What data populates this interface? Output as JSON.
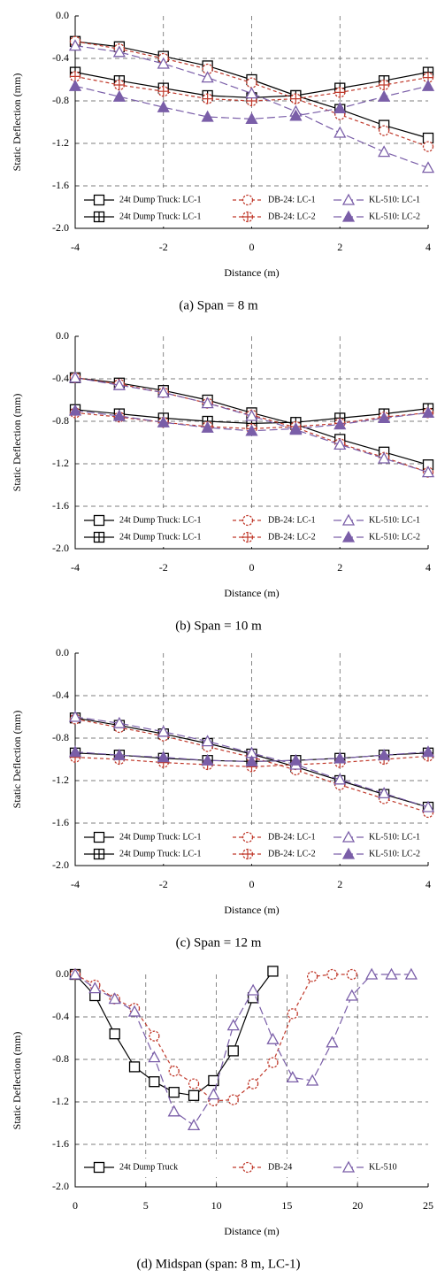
{
  "chart_data": [
    {
      "type": "line",
      "caption": "(a) Span = 8 m",
      "xlabel": "Distance (m)",
      "ylabel": "Static Deflection (mm)",
      "xlim": [
        -4,
        4
      ],
      "xticks": [
        -4,
        -2,
        0,
        2,
        4
      ],
      "ylim": [
        -2,
        0
      ],
      "yticks": [
        {
          "value": 0,
          "label": "0.0"
        },
        -0.4,
        -0.8,
        -1.2,
        -1.6,
        {
          "value": -2,
          "label": "-2.0"
        }
      ],
      "grid": true,
      "x": [
        -4,
        -3,
        -2,
        -1,
        0,
        1,
        2,
        3,
        4
      ],
      "series": [
        {
          "name": "24t Dump Truck: LC-1",
          "color": "#000000",
          "marker": "square",
          "dash": "solid",
          "values": [
            -0.24,
            -0.29,
            -0.38,
            -0.47,
            -0.6,
            -0.75,
            -0.88,
            -1.03,
            -1.15
          ]
        },
        {
          "name": "24t Dump Truck: LC-1",
          "color": "#000000",
          "marker": "square-plus",
          "dash": "solid",
          "values": [
            -0.53,
            -0.61,
            -0.68,
            -0.75,
            -0.77,
            -0.75,
            -0.68,
            -0.61,
            -0.53
          ]
        },
        {
          "name": "DB-24: LC-1",
          "color": "#c0392b",
          "marker": "circle",
          "dash": "short",
          "values": [
            -0.24,
            -0.31,
            -0.4,
            -0.5,
            -0.63,
            -0.78,
            -0.93,
            -1.08,
            -1.23
          ]
        },
        {
          "name": "DB-24: LC-2",
          "color": "#c0392b",
          "marker": "circle-plus",
          "dash": "short",
          "values": [
            -0.57,
            -0.65,
            -0.71,
            -0.78,
            -0.8,
            -0.78,
            -0.72,
            -0.65,
            -0.58
          ]
        },
        {
          "name": "KL-510: LC-1",
          "color": "#7a5ea8",
          "marker": "triangle",
          "dash": "long",
          "values": [
            -0.28,
            -0.34,
            -0.45,
            -0.58,
            -0.73,
            -0.9,
            -1.1,
            -1.28,
            -1.43
          ]
        },
        {
          "name": "KL-510: LC-2",
          "color": "#7a5ea8",
          "marker": "triangle-filled",
          "dash": "long",
          "values": [
            -0.66,
            -0.76,
            -0.86,
            -0.95,
            -0.97,
            -0.94,
            -0.87,
            -0.76,
            -0.66
          ]
        }
      ]
    },
    {
      "type": "line",
      "caption": "(b) Span = 10 m",
      "xlabel": "Distance (m)",
      "ylabel": "Static Deflection (mm)",
      "xlim": [
        -4,
        4
      ],
      "xticks": [
        -4,
        -2,
        0,
        2,
        4
      ],
      "ylim": [
        -2,
        0
      ],
      "yticks": [
        {
          "value": 0,
          "label": "0.0"
        },
        -0.4,
        -0.8,
        -1.2,
        -1.6,
        {
          "value": -2,
          "label": "-2.0"
        }
      ],
      "grid": true,
      "x": [
        -4,
        -3,
        -2,
        -1,
        0,
        1,
        2,
        3,
        4
      ],
      "series": [
        {
          "name": "24t Dump Truck: LC-1",
          "color": "#000000",
          "marker": "square",
          "dash": "solid",
          "values": [
            -0.39,
            -0.44,
            -0.51,
            -0.6,
            -0.72,
            -0.83,
            -0.97,
            -1.09,
            -1.21
          ]
        },
        {
          "name": "24t Dump Truck: LC-1",
          "color": "#000000",
          "marker": "square-plus",
          "dash": "solid",
          "values": [
            -0.69,
            -0.73,
            -0.77,
            -0.8,
            -0.82,
            -0.81,
            -0.77,
            -0.73,
            -0.68
          ]
        },
        {
          "name": "DB-24: LC-1",
          "color": "#c0392b",
          "marker": "circle",
          "dash": "short",
          "values": [
            -0.39,
            -0.45,
            -0.53,
            -0.63,
            -0.74,
            -0.86,
            -1.01,
            -1.14,
            -1.28
          ]
        },
        {
          "name": "DB-24: LC-2",
          "color": "#c0392b",
          "marker": "circle-plus",
          "dash": "short",
          "values": [
            -0.72,
            -0.76,
            -0.81,
            -0.85,
            -0.87,
            -0.85,
            -0.82,
            -0.76,
            -0.72
          ]
        },
        {
          "name": "KL-510: LC-1",
          "color": "#7a5ea8",
          "marker": "triangle",
          "dash": "long",
          "values": [
            -0.39,
            -0.46,
            -0.53,
            -0.63,
            -0.75,
            -0.88,
            -1.02,
            -1.15,
            -1.28
          ]
        },
        {
          "name": "KL-510: LC-2",
          "color": "#7a5ea8",
          "marker": "triangle-filled",
          "dash": "long",
          "values": [
            -0.7,
            -0.75,
            -0.81,
            -0.86,
            -0.89,
            -0.87,
            -0.83,
            -0.77,
            -0.72
          ]
        }
      ]
    },
    {
      "type": "line",
      "caption": "(c) Span = 12 m",
      "xlabel": "Distance (m)",
      "ylabel": "Static Deflection (mm)",
      "xlim": [
        -4,
        4
      ],
      "xticks": [
        -4,
        -2,
        0,
        2,
        4
      ],
      "ylim": [
        -2,
        0
      ],
      "yticks": [
        {
          "value": 0,
          "label": "0.0"
        },
        -0.4,
        -0.8,
        -1.2,
        -1.6,
        {
          "value": -2,
          "label": "-2.0"
        }
      ],
      "grid": true,
      "x": [
        -4,
        -3,
        -2,
        -1,
        0,
        1,
        2,
        3,
        4
      ],
      "series": [
        {
          "name": "24t Dump Truck: LC-1",
          "color": "#000000",
          "marker": "square",
          "dash": "solid",
          "values": [
            -0.61,
            -0.68,
            -0.76,
            -0.85,
            -0.95,
            -1.07,
            -1.2,
            -1.33,
            -1.45
          ]
        },
        {
          "name": "24t Dump Truck: LC-1",
          "color": "#000000",
          "marker": "square-plus",
          "dash": "solid",
          "values": [
            -0.94,
            -0.96,
            -0.99,
            -1.01,
            -1.02,
            -1.01,
            -0.99,
            -0.96,
            -0.94
          ]
        },
        {
          "name": "DB-24: LC-1",
          "color": "#c0392b",
          "marker": "circle",
          "dash": "short",
          "values": [
            -0.62,
            -0.7,
            -0.78,
            -0.88,
            -0.98,
            -1.1,
            -1.24,
            -1.37,
            -1.5
          ]
        },
        {
          "name": "DB-24: LC-2",
          "color": "#c0392b",
          "marker": "circle-plus",
          "dash": "short",
          "values": [
            -0.98,
            -1.0,
            -1.03,
            -1.05,
            -1.07,
            -1.05,
            -1.03,
            -1.0,
            -0.97
          ]
        },
        {
          "name": "KL-510: LC-1",
          "color": "#7a5ea8",
          "marker": "triangle",
          "dash": "long",
          "values": [
            -0.6,
            -0.66,
            -0.74,
            -0.83,
            -0.94,
            -1.05,
            -1.19,
            -1.32,
            -1.45
          ]
        },
        {
          "name": "KL-510: LC-2",
          "color": "#7a5ea8",
          "marker": "triangle-filled",
          "dash": "long",
          "values": [
            -0.93,
            -0.96,
            -0.98,
            -1.01,
            -1.02,
            -1.01,
            -0.99,
            -0.96,
            -0.93
          ]
        }
      ]
    },
    {
      "type": "line",
      "caption": "(d) Midspan (span: 8 m, LC-1)",
      "xlabel": "Distance (m)",
      "ylabel": "Static Deflection (mm)",
      "xlim": [
        0,
        25
      ],
      "xticks": [
        0,
        5,
        10,
        15,
        20,
        25
      ],
      "ylim": [
        -2,
        0
      ],
      "yticks": [
        {
          "value": 0,
          "label": "0.0"
        },
        -0.4,
        -0.8,
        -1.2,
        -1.6,
        {
          "value": -2,
          "label": "-2.0"
        }
      ],
      "grid": true,
      "series": [
        {
          "name": "24t Dump Truck",
          "color": "#000000",
          "marker": "square",
          "dash": "solid",
          "x": [
            0,
            1.4,
            2.8,
            4.2,
            5.6,
            7.0,
            8.4,
            9.8,
            11.2,
            12.6,
            14.0
          ],
          "values": [
            0,
            -0.2,
            -0.56,
            -0.87,
            -1.01,
            -1.11,
            -1.14,
            -1.0,
            -0.72,
            -0.22,
            0.03
          ]
        },
        {
          "name": "DB-24",
          "color": "#c0392b",
          "marker": "circle",
          "dash": "short",
          "x": [
            0,
            1.4,
            2.8,
            4.2,
            5.6,
            7.0,
            8.4,
            9.8,
            11.2,
            12.6,
            14.0,
            15.4,
            16.8,
            18.2,
            19.6
          ],
          "values": [
            0,
            -0.1,
            -0.23,
            -0.32,
            -0.58,
            -0.91,
            -1.03,
            -1.19,
            -1.18,
            -1.03,
            -0.83,
            -0.37,
            -0.02,
            0,
            0
          ]
        },
        {
          "name": "KL-510",
          "color": "#7a5ea8",
          "marker": "triangle",
          "dash": "long",
          "x": [
            0,
            1.4,
            2.8,
            4.2,
            5.6,
            7.0,
            8.4,
            9.8,
            11.2,
            12.6,
            14.0,
            15.4,
            16.8,
            18.2,
            19.6,
            21.0,
            22.4,
            23.8
          ],
          "values": [
            0,
            -0.13,
            -0.23,
            -0.35,
            -0.78,
            -1.29,
            -1.42,
            -1.13,
            -0.48,
            -0.15,
            -0.61,
            -0.97,
            -1.0,
            -0.64,
            -0.2,
            0,
            0,
            0
          ]
        }
      ]
    }
  ]
}
